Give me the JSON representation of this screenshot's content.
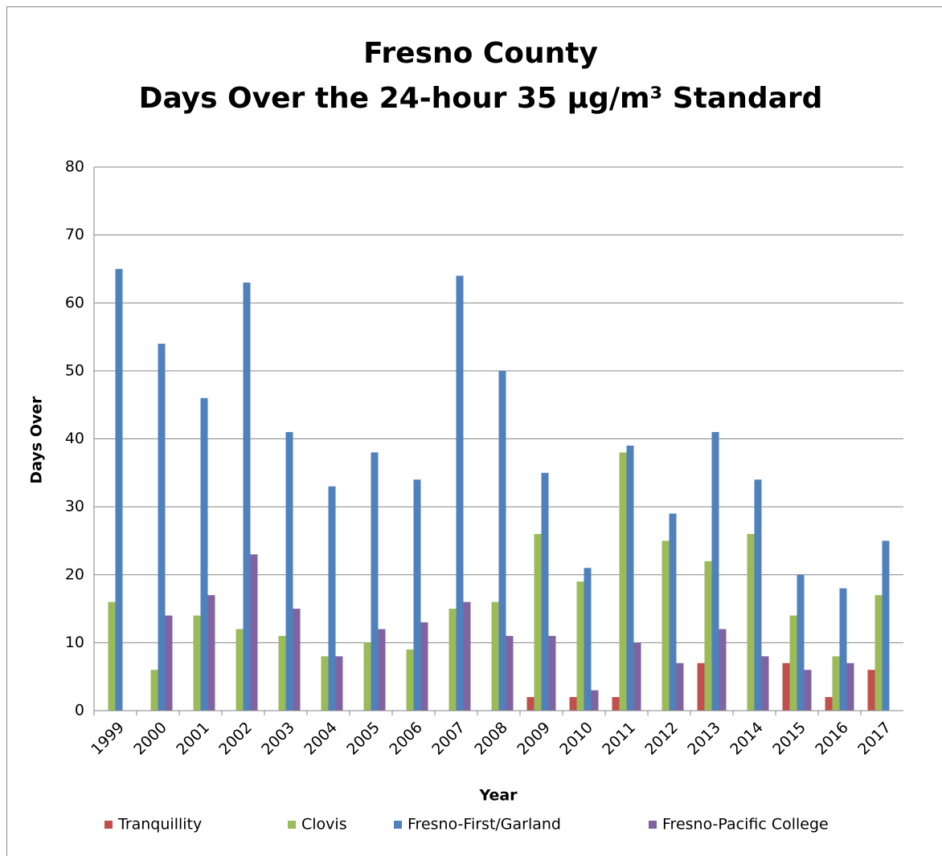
{
  "chart_data": {
    "type": "bar",
    "title": "Fresno County",
    "subtitle": "Days Over the 24-hour 35 µg/m³ Standard",
    "x_label": "Year",
    "y_label": "Days Over",
    "categories": [
      "1999",
      "2000",
      "2001",
      "2002",
      "2003",
      "2004",
      "2005",
      "2006",
      "2007",
      "2008",
      "2009",
      "2010",
      "2011",
      "2012",
      "2013",
      "2014",
      "2015",
      "2016",
      "2017"
    ],
    "series": [
      {
        "name": "Tranquillity",
        "color": "#c0504d",
        "values": [
          null,
          null,
          null,
          null,
          null,
          null,
          null,
          null,
          null,
          null,
          2,
          2,
          2,
          null,
          7,
          null,
          7,
          2,
          6
        ]
      },
      {
        "name": "Clovis",
        "color": "#9bbb59",
        "values": [
          16,
          6,
          14,
          12,
          11,
          8,
          10,
          9,
          15,
          16,
          26,
          19,
          38,
          25,
          22,
          26,
          14,
          8,
          17
        ]
      },
      {
        "name": "Fresno-First/Garland",
        "color": "#4f81bd",
        "values": [
          65,
          54,
          46,
          63,
          41,
          33,
          38,
          34,
          64,
          50,
          35,
          21,
          39,
          29,
          41,
          34,
          20,
          18,
          25
        ]
      },
      {
        "name": "Fresno-Pacific College",
        "color": "#8064a2",
        "values": [
          null,
          14,
          17,
          23,
          15,
          8,
          12,
          13,
          16,
          11,
          11,
          3,
          10,
          7,
          12,
          8,
          6,
          7,
          null
        ]
      }
    ],
    "ylim": [
      0,
      80
    ],
    "yticks": [
      0,
      10,
      20,
      30,
      40,
      50,
      60,
      70,
      80
    ],
    "grid": true,
    "legend": "bottom"
  }
}
